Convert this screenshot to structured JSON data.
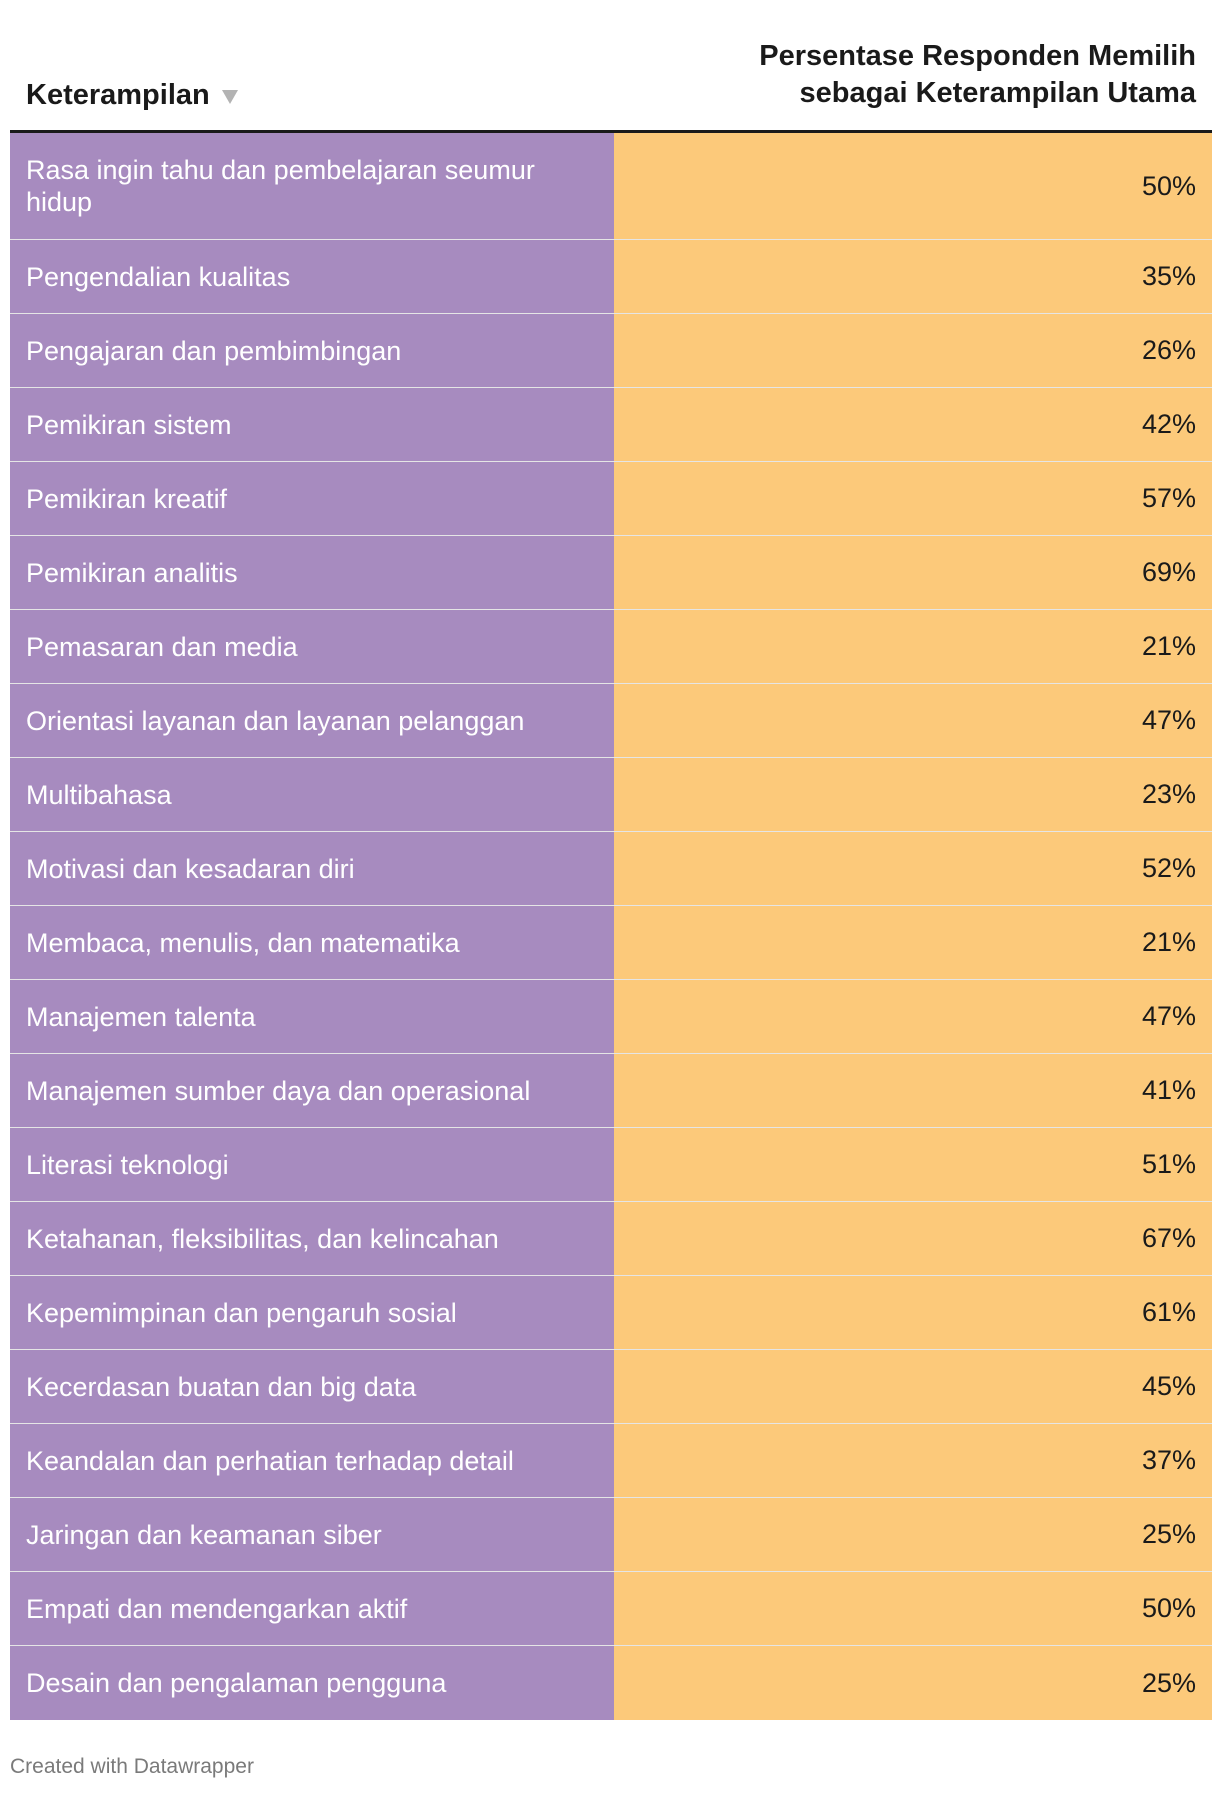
{
  "chart_data": {
    "type": "table",
    "columns": [
      "Keterampilan",
      "Persentase Responden Memilih sebagai Keterampilan Utama"
    ],
    "header_right_lines": [
      "Persentase Responden Memilih",
      "sebagai Keterampilan Utama"
    ],
    "rows": [
      {
        "skill": "Rasa ingin tahu dan pembelajaran seumur hidup",
        "value": 50,
        "display": "50%"
      },
      {
        "skill": "Pengendalian kualitas",
        "value": 35,
        "display": "35%"
      },
      {
        "skill": "Pengajaran dan pembimbingan",
        "value": 26,
        "display": "26%"
      },
      {
        "skill": "Pemikiran sistem",
        "value": 42,
        "display": "42%"
      },
      {
        "skill": "Pemikiran kreatif",
        "value": 57,
        "display": "57%"
      },
      {
        "skill": "Pemikiran analitis",
        "value": 69,
        "display": "69%"
      },
      {
        "skill": "Pemasaran dan media",
        "value": 21,
        "display": "21%"
      },
      {
        "skill": "Orientasi layanan dan layanan pelanggan",
        "value": 47,
        "display": "47%"
      },
      {
        "skill": "Multibahasa",
        "value": 23,
        "display": "23%"
      },
      {
        "skill": "Motivasi dan kesadaran diri",
        "value": 52,
        "display": "52%"
      },
      {
        "skill": "Membaca, menulis, dan matematika",
        "value": 21,
        "display": "21%"
      },
      {
        "skill": "Manajemen talenta",
        "value": 47,
        "display": "47%"
      },
      {
        "skill": "Manajemen sumber daya dan operasional",
        "value": 41,
        "display": "41%"
      },
      {
        "skill": "Literasi teknologi",
        "value": 51,
        "display": "51%"
      },
      {
        "skill": "Ketahanan, fleksibilitas, dan kelincahan",
        "value": 67,
        "display": "67%"
      },
      {
        "skill": "Kepemimpinan dan pengaruh sosial",
        "value": 61,
        "display": "61%"
      },
      {
        "skill": "Kecerdasan buatan dan big data",
        "value": 45,
        "display": "45%"
      },
      {
        "skill": "Keandalan dan perhatian terhadap detail",
        "value": 37,
        "display": "37%"
      },
      {
        "skill": "Jaringan dan keamanan siber",
        "value": 25,
        "display": "25%"
      },
      {
        "skill": "Empati dan mendengarkan aktif",
        "value": 50,
        "display": "50%"
      },
      {
        "skill": "Desain dan pengalaman pengguna",
        "value": 25,
        "display": "25%"
      }
    ],
    "colors": {
      "skill_column": "#a78bbf",
      "value_column": "#fcc97a"
    },
    "sort_icon": "sort-descending-icon"
  },
  "credit": "Created with Datawrapper"
}
